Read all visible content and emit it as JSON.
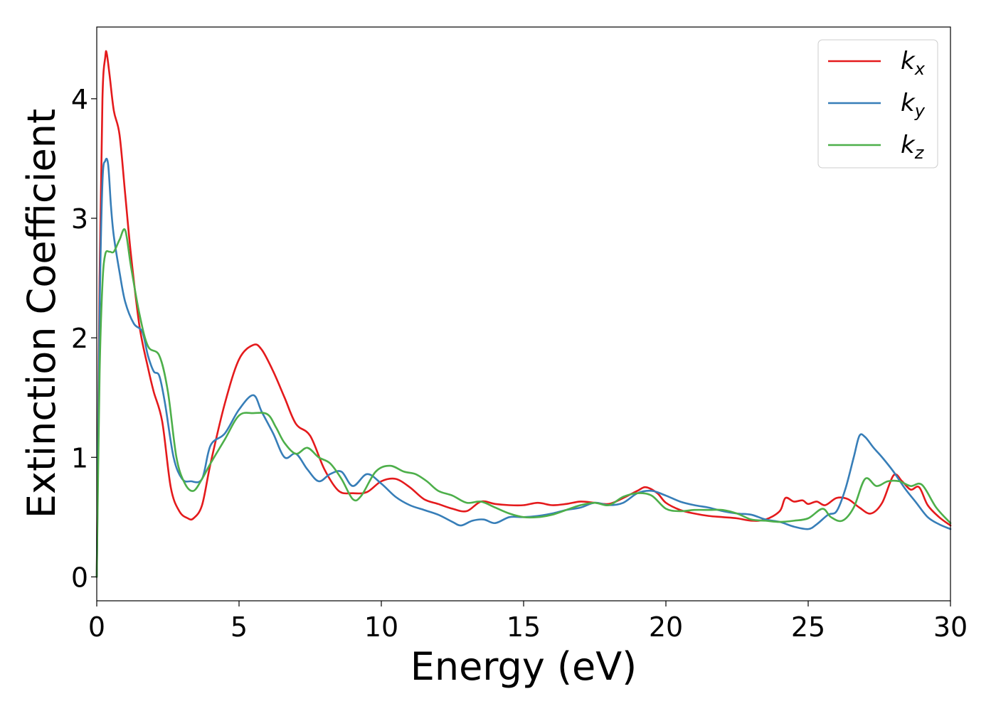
{
  "chart_data": {
    "type": "line",
    "xlabel": "Energy (eV)",
    "ylabel": "Extinction Coefficient",
    "xlim": [
      0,
      30
    ],
    "ylim": [
      -0.2,
      4.6
    ],
    "xticks": [
      0,
      5,
      10,
      15,
      20,
      25,
      30
    ],
    "yticks": [
      0,
      1,
      2,
      3,
      4
    ],
    "grid": false,
    "legend_position": "top-right",
    "series": [
      {
        "name": "k_x",
        "base": "k",
        "sub": "x",
        "color": "#e41a1c",
        "x": [
          0,
          0.1,
          0.2,
          0.3,
          0.35,
          0.45,
          0.6,
          0.8,
          1.0,
          1.2,
          1.5,
          1.8,
          2.0,
          2.3,
          2.6,
          2.9,
          3.2,
          3.4,
          3.7,
          4.0,
          4.5,
          5.0,
          5.5,
          5.8,
          6.2,
          6.6,
          7.0,
          7.5,
          8.0,
          8.5,
          9.0,
          9.5,
          10.0,
          10.5,
          11.0,
          11.5,
          12.0,
          12.5,
          13.0,
          13.5,
          14.0,
          14.5,
          15.0,
          15.5,
          16.0,
          16.5,
          17.0,
          17.5,
          18.0,
          18.5,
          19.0,
          19.3,
          19.7,
          20.0,
          20.5,
          21.0,
          21.5,
          22.0,
          22.5,
          23.0,
          23.5,
          24.0,
          24.2,
          24.5,
          24.8,
          25.0,
          25.3,
          25.6,
          26.0,
          26.4,
          26.8,
          27.2,
          27.6,
          28.0,
          28.3,
          28.6,
          28.9,
          29.2,
          29.6,
          30.0
        ],
        "y": [
          0,
          2.5,
          4.0,
          4.35,
          4.38,
          4.2,
          3.9,
          3.7,
          3.2,
          2.7,
          2.1,
          1.75,
          1.55,
          1.3,
          0.75,
          0.55,
          0.49,
          0.49,
          0.6,
          0.95,
          1.45,
          1.82,
          1.94,
          1.9,
          1.72,
          1.5,
          1.28,
          1.18,
          0.9,
          0.72,
          0.7,
          0.71,
          0.8,
          0.82,
          0.75,
          0.65,
          0.61,
          0.57,
          0.55,
          0.63,
          0.61,
          0.6,
          0.6,
          0.62,
          0.6,
          0.61,
          0.63,
          0.62,
          0.61,
          0.66,
          0.72,
          0.75,
          0.7,
          0.62,
          0.56,
          0.53,
          0.51,
          0.5,
          0.49,
          0.47,
          0.48,
          0.55,
          0.66,
          0.63,
          0.64,
          0.61,
          0.63,
          0.6,
          0.66,
          0.65,
          0.58,
          0.53,
          0.62,
          0.85,
          0.8,
          0.73,
          0.75,
          0.6,
          0.5,
          0.43
        ]
      },
      {
        "name": "k_y",
        "base": "k",
        "sub": "y",
        "color": "#377eb8",
        "x": [
          0,
          0.1,
          0.2,
          0.3,
          0.4,
          0.5,
          0.6,
          0.8,
          1.0,
          1.3,
          1.6,
          1.8,
          2.0,
          2.2,
          2.4,
          2.7,
          3.0,
          3.3,
          3.7,
          4.0,
          4.5,
          5.0,
          5.5,
          5.8,
          6.2,
          6.6,
          7.0,
          7.4,
          7.8,
          8.2,
          8.6,
          9.0,
          9.5,
          10.0,
          10.5,
          11.0,
          11.5,
          12.0,
          12.5,
          12.8,
          13.2,
          13.6,
          14.0,
          14.5,
          15.0,
          15.5,
          16.0,
          16.5,
          17.0,
          17.5,
          18.0,
          18.5,
          19.0,
          19.5,
          20.0,
          20.5,
          21.0,
          21.5,
          22.0,
          22.5,
          23.0,
          23.5,
          24.0,
          24.5,
          25.0,
          25.3,
          25.7,
          26.0,
          26.3,
          26.6,
          26.8,
          27.0,
          27.3,
          27.6,
          28.0,
          28.4,
          28.8,
          29.2,
          29.6,
          30.0
        ],
        "y": [
          0,
          2.2,
          3.3,
          3.48,
          3.45,
          3.1,
          2.85,
          2.55,
          2.3,
          2.12,
          2.05,
          1.85,
          1.72,
          1.68,
          1.45,
          1.0,
          0.82,
          0.8,
          0.82,
          1.1,
          1.2,
          1.4,
          1.52,
          1.38,
          1.2,
          1.0,
          1.03,
          0.9,
          0.8,
          0.86,
          0.88,
          0.76,
          0.86,
          0.78,
          0.67,
          0.6,
          0.56,
          0.52,
          0.46,
          0.43,
          0.47,
          0.48,
          0.45,
          0.5,
          0.5,
          0.51,
          0.53,
          0.56,
          0.58,
          0.62,
          0.6,
          0.62,
          0.7,
          0.72,
          0.68,
          0.63,
          0.6,
          0.58,
          0.55,
          0.53,
          0.52,
          0.48,
          0.46,
          0.42,
          0.4,
          0.44,
          0.52,
          0.55,
          0.73,
          1.0,
          1.18,
          1.17,
          1.08,
          1.0,
          0.88,
          0.74,
          0.62,
          0.5,
          0.44,
          0.4
        ]
      },
      {
        "name": "k_z",
        "base": "k",
        "sub": "z",
        "color": "#4daf4a",
        "x": [
          0,
          0.1,
          0.2,
          0.3,
          0.45,
          0.6,
          0.8,
          1.0,
          1.2,
          1.5,
          1.8,
          2.2,
          2.5,
          2.8,
          3.1,
          3.4,
          3.7,
          4.0,
          4.5,
          5.0,
          5.5,
          6.0,
          6.3,
          6.6,
          7.0,
          7.4,
          7.8,
          8.2,
          8.6,
          9.0,
          9.3,
          9.8,
          10.3,
          10.8,
          11.2,
          11.6,
          12.0,
          12.5,
          13.0,
          13.5,
          14.0,
          14.5,
          15.0,
          15.5,
          16.0,
          16.5,
          17.0,
          17.5,
          18.0,
          18.5,
          19.0,
          19.5,
          20.0,
          20.5,
          21.0,
          21.5,
          22.0,
          22.5,
          23.0,
          23.5,
          24.0,
          24.5,
          25.0,
          25.5,
          25.8,
          26.2,
          26.6,
          27.0,
          27.4,
          27.8,
          28.2,
          28.6,
          29.0,
          29.5,
          30.0
        ],
        "y": [
          0,
          1.7,
          2.45,
          2.7,
          2.72,
          2.72,
          2.82,
          2.9,
          2.6,
          2.2,
          1.93,
          1.85,
          1.55,
          1.0,
          0.78,
          0.72,
          0.82,
          0.95,
          1.15,
          1.35,
          1.37,
          1.36,
          1.25,
          1.12,
          1.03,
          1.08,
          1.0,
          0.95,
          0.82,
          0.65,
          0.68,
          0.88,
          0.93,
          0.88,
          0.86,
          0.8,
          0.72,
          0.68,
          0.62,
          0.63,
          0.58,
          0.53,
          0.5,
          0.5,
          0.52,
          0.56,
          0.6,
          0.62,
          0.6,
          0.67,
          0.7,
          0.68,
          0.57,
          0.55,
          0.56,
          0.56,
          0.56,
          0.53,
          0.48,
          0.47,
          0.46,
          0.47,
          0.49,
          0.57,
          0.5,
          0.47,
          0.58,
          0.82,
          0.76,
          0.8,
          0.8,
          0.76,
          0.77,
          0.58,
          0.45
        ]
      }
    ]
  }
}
